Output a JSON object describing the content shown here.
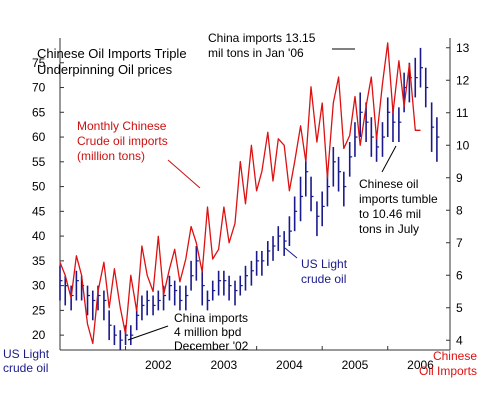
{
  "chart_data": {
    "type": "line",
    "title_lines": [
      "Chinese Oil Imports Triple",
      "Underpinning Oil prices"
    ],
    "x_ticks": [
      "2002",
      "2003",
      "2004",
      "2005",
      "2006"
    ],
    "left_axis": {
      "label_lines": [
        "US Light",
        "crude oil"
      ],
      "range": [
        17,
        80
      ],
      "ticks": [
        20,
        25,
        30,
        35,
        40,
        45,
        50,
        55,
        60,
        65,
        70,
        75
      ]
    },
    "right_axis": {
      "label_lines": [
        "Chinese",
        "Oil Imports"
      ],
      "range": [
        3.7,
        13.3
      ],
      "ticks": [
        4,
        5,
        6,
        7,
        8,
        9,
        10,
        11,
        12,
        13
      ]
    },
    "x_range": [
      2001.0,
      2006.95
    ],
    "annotations": {
      "china_jan06": [
        "China imports 13.15",
        "mil tons in Jan '06"
      ],
      "monthly_label": [
        "Monthly Chinese",
        "Crude oil imports",
        "(million tons)"
      ],
      "tumble": [
        "Chinese oil",
        "imports tumble",
        "to 10.46 mil",
        "tons in July"
      ],
      "us_light": [
        "US Light",
        "crude oil"
      ],
      "china_dec02": [
        "China imports",
        "4 million bpd",
        "December '02"
      ]
    },
    "series": [
      {
        "name": "Monthly Chinese Crude oil imports (million tons)",
        "axis": "right",
        "color": "#dd1111",
        "x": [
          2001.0,
          2001.08,
          2001.17,
          2001.25,
          2001.33,
          2001.42,
          2001.5,
          2001.58,
          2001.67,
          2001.75,
          2001.83,
          2001.92,
          2002.0,
          2002.08,
          2002.17,
          2002.25,
          2002.33,
          2002.42,
          2002.5,
          2002.58,
          2002.67,
          2002.75,
          2002.83,
          2002.92,
          2003.0,
          2003.08,
          2003.17,
          2003.25,
          2003.33,
          2003.42,
          2003.5,
          2003.58,
          2003.67,
          2003.75,
          2003.83,
          2003.92,
          2004.0,
          2004.08,
          2004.17,
          2004.25,
          2004.33,
          2004.42,
          2004.5,
          2004.58,
          2004.67,
          2004.75,
          2004.83,
          2004.92,
          2005.0,
          2005.08,
          2005.17,
          2005.25,
          2005.33,
          2005.42,
          2005.5,
          2005.58,
          2005.67,
          2005.75,
          2005.83,
          2005.92,
          2006.0,
          2006.08,
          2006.17,
          2006.25,
          2006.33,
          2006.42,
          2006.5
        ],
        "y": [
          6.4,
          6.0,
          5.3,
          6.6,
          6.0,
          4.5,
          3.9,
          5.5,
          6.4,
          5.0,
          6.2,
          5.0,
          4.2,
          6.0,
          4.9,
          6.9,
          6.0,
          5.5,
          7.2,
          5.4,
          6.2,
          6.8,
          5.8,
          6.5,
          7.5,
          7.0,
          6.1,
          8.1,
          6.5,
          6.8,
          8.1,
          7.0,
          7.6,
          9.5,
          8.2,
          10.0,
          8.6,
          9.2,
          10.4,
          8.9,
          10.2,
          10.0,
          8.6,
          9.5,
          10.6,
          9.5,
          11.8,
          10.1,
          11.3,
          9.0,
          11.3,
          12.1,
          9.9,
          10.3,
          11.5,
          10.0,
          11.2,
          12.1,
          10.2,
          11.9,
          13.15,
          11.0,
          12.6,
          11.2,
          12.5,
          10.46,
          10.46
        ]
      },
      {
        "name": "US Light crude oil",
        "axis": "left",
        "color": "#1a1a8c",
        "x": [
          2001.0,
          2001.08,
          2001.17,
          2001.25,
          2001.33,
          2001.42,
          2001.5,
          2001.58,
          2001.67,
          2001.75,
          2001.83,
          2001.92,
          2002.0,
          2002.08,
          2002.17,
          2002.25,
          2002.33,
          2002.42,
          2002.5,
          2002.58,
          2002.67,
          2002.75,
          2002.83,
          2002.92,
          2003.0,
          2003.08,
          2003.17,
          2003.25,
          2003.33,
          2003.42,
          2003.5,
          2003.58,
          2003.67,
          2003.75,
          2003.83,
          2003.92,
          2004.0,
          2004.08,
          2004.17,
          2004.25,
          2004.33,
          2004.42,
          2004.5,
          2004.58,
          2004.67,
          2004.75,
          2004.83,
          2004.92,
          2005.0,
          2005.08,
          2005.17,
          2005.25,
          2005.33,
          2005.42,
          2005.5,
          2005.58,
          2005.67,
          2005.75,
          2005.83,
          2005.92,
          2006.0,
          2006.08,
          2006.17,
          2006.25,
          2006.33,
          2006.42,
          2006.5,
          2006.58,
          2006.67,
          2006.75
        ],
        "y": [
          31,
          30,
          28,
          31,
          30,
          28,
          27,
          28,
          27,
          22,
          20,
          19,
          20,
          20,
          24,
          26,
          27,
          26,
          27,
          28,
          30,
          29,
          27,
          28,
          32,
          35,
          30,
          27,
          29,
          31,
          31,
          30,
          29,
          30,
          32,
          33,
          35,
          35,
          37,
          38,
          40,
          39,
          41,
          45,
          48,
          53,
          48,
          44,
          46,
          50,
          55,
          53,
          50,
          56,
          60,
          65,
          63,
          60,
          58,
          60,
          65,
          63,
          63,
          70,
          72,
          72,
          74,
          70,
          62,
          60
        ],
        "lo": [
          27,
          26,
          25,
          27,
          27,
          24,
          23,
          25,
          23,
          19,
          18,
          17,
          18,
          18,
          21,
          23,
          24,
          24,
          25,
          25,
          27,
          26,
          25,
          25,
          29,
          31,
          26,
          25,
          27,
          28,
          28,
          27,
          26,
          28,
          29,
          30,
          32,
          32,
          34,
          35,
          37,
          36,
          38,
          41,
          43,
          48,
          45,
          40,
          42,
          46,
          50,
          49,
          46,
          52,
          56,
          60,
          59,
          56,
          55,
          56,
          60,
          59,
          59,
          65,
          67,
          68,
          70,
          66,
          57,
          55
        ],
        "hi": [
          34,
          32,
          30,
          33,
          32,
          30,
          29,
          30,
          29,
          25,
          22,
          21,
          22,
          22,
          26,
          28,
          29,
          28,
          29,
          30,
          32,
          31,
          30,
          30,
          35,
          38,
          33,
          29,
          31,
          33,
          33,
          32,
          31,
          32,
          34,
          35,
          37,
          37,
          39,
          40,
          42,
          41,
          44,
          48,
          52,
          56,
          52,
          47,
          49,
          53,
          58,
          56,
          53,
          59,
          63,
          69,
          67,
          64,
          61,
          63,
          68,
          66,
          66,
          73,
          75,
          76,
          78,
          74,
          67,
          64
        ]
      }
    ]
  }
}
